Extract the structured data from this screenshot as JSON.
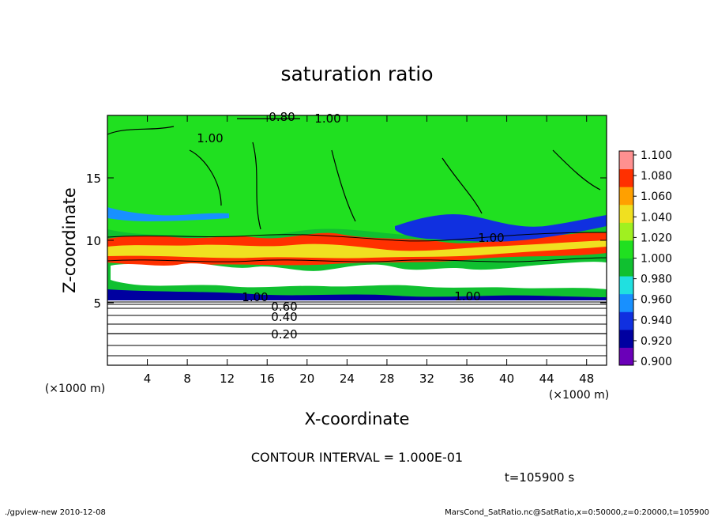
{
  "chart_data": {
    "type": "heatmap",
    "title": "saturation ratio",
    "xlabel": "X-coordinate",
    "ylabel": "Z-coordinate",
    "x_unit_left": "(×1000 m)",
    "x_unit_right": "(×1000 m)",
    "xlim": [
      0,
      50
    ],
    "ylim": [
      0,
      20
    ],
    "x_ticks": [
      4,
      8,
      12,
      16,
      20,
      24,
      28,
      32,
      36,
      40,
      44,
      48
    ],
    "y_ticks": [
      5,
      10,
      15
    ],
    "colorbar": {
      "levels": [
        "0.900",
        "0.920",
        "0.940",
        "0.960",
        "0.980",
        "1.000",
        "1.020",
        "1.040",
        "1.060",
        "1.080",
        "1.100"
      ],
      "colors": [
        "#6a00b8",
        "#0000a0",
        "#1030e0",
        "#1890ff",
        "#20e0e0",
        "#10c030",
        "#20e020",
        "#a0f020",
        "#f0e020",
        "#ffa000",
        "#ff3000",
        "#ff9090"
      ]
    },
    "contour_labels": [
      "0.80",
      "1.00",
      "1.00",
      "1.00",
      "1.00",
      "1.00",
      "0.60",
      "0.40",
      "0.20"
    ],
    "contour_interval_text": "CONTOUR INTERVAL = 1.000E-01",
    "time_text": "t=105900 s",
    "grid": false,
    "legend": "colorbar-right"
  },
  "footer": {
    "left": "./gpview-new  2010-12-08",
    "right": "MarsCond_SatRatio.nc@SatRatio,x=0:50000,z=0:20000,t=105900"
  }
}
